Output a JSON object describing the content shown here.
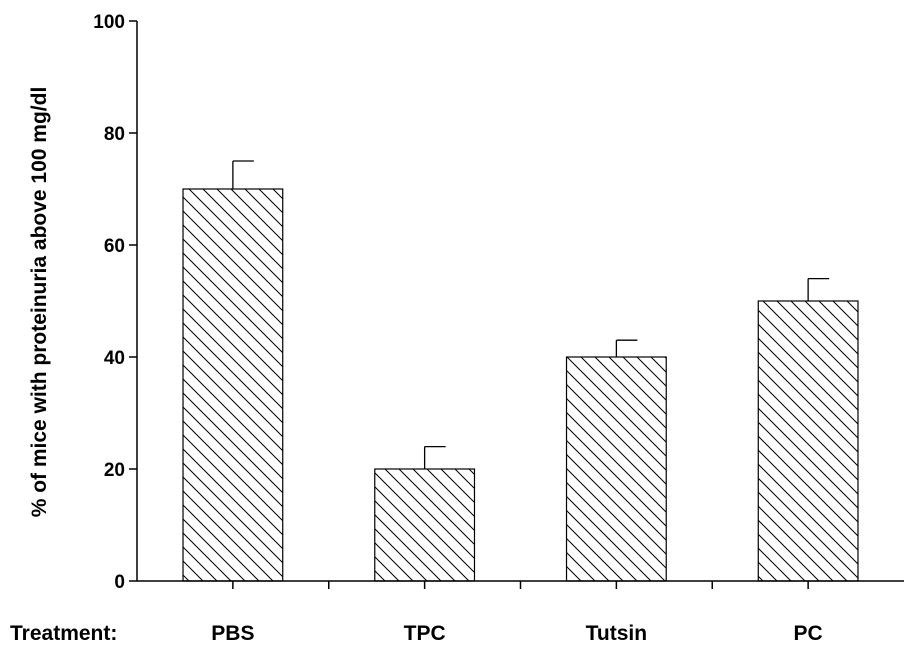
{
  "chart_data": {
    "type": "bar",
    "title": "",
    "xlabel": "Treatment:",
    "ylabel": "% of mice with proteinuria above 100 mg/dl",
    "categories": [
      "PBS",
      "TPC",
      "Tutsin",
      "PC"
    ],
    "values": [
      70,
      20,
      40,
      50
    ],
    "error_plus": [
      5,
      4,
      3,
      4
    ],
    "ylim": [
      0,
      100
    ],
    "yticks": [
      0,
      20,
      40,
      60,
      80,
      100
    ],
    "grid": false,
    "bar_fill": "hatched"
  }
}
